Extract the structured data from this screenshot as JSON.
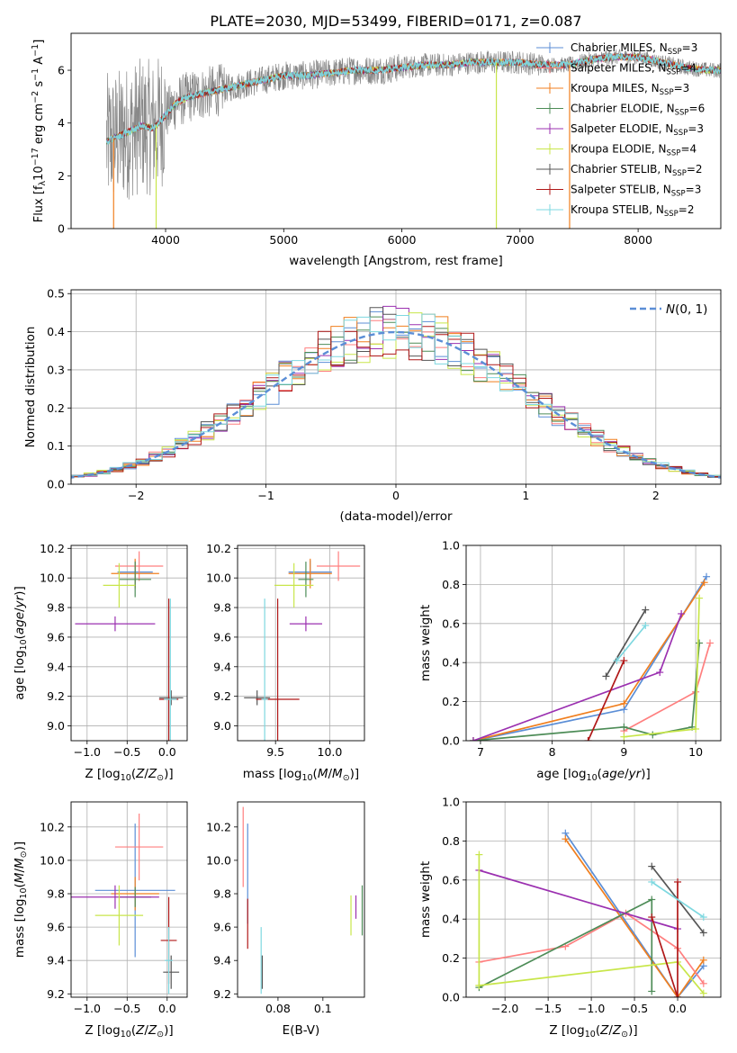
{
  "figure": {
    "title": "PLATE=2030, MJD=53499, FIBERID=0171, z=0.087"
  },
  "colors": {
    "chabrier_miles": "#5b8ed6",
    "salpeter_miles": "#ff7f7f",
    "kroupa_miles": "#f07f1f",
    "chabrier_elodie": "#4d8c57",
    "salpeter_elodie": "#9b30b0",
    "kroupa_elodie": "#c8e64a",
    "chabrier_stelib": "#555555",
    "salpeter_stelib": "#b01818",
    "kroupa_stelib": "#7ed8e0",
    "spectrum_data": "#888888",
    "gaussian": "#5b8ed6"
  },
  "chart_data": [
    {
      "id": "spectrum",
      "type": "line",
      "xlabel": "wavelength [Angstrom, rest frame]",
      "ylabel": "Flux [f_λ10^-17 erg cm^-2 s^-1 A^-1]",
      "xlim": [
        3200,
        8700
      ],
      "ylim": [
        0,
        7.4
      ],
      "xticks": [
        4000,
        5000,
        6000,
        7000,
        8000
      ],
      "yticks": [
        0,
        2,
        4,
        6
      ],
      "legend_position": "top-right",
      "legend": [
        {
          "key": "chabrier_miles",
          "label": "Chabrier MILES, N",
          "sub": "SSP",
          "rest": "=3"
        },
        {
          "key": "salpeter_miles",
          "label": "Salpeter MILES, N",
          "sub": "SSP",
          "rest": "=4"
        },
        {
          "key": "kroupa_miles",
          "label": "Kroupa MILES, N",
          "sub": "SSP",
          "rest": "=3"
        },
        {
          "key": "chabrier_elodie",
          "label": "Chabrier ELODIE, N",
          "sub": "SSP",
          "rest": "=6"
        },
        {
          "key": "salpeter_elodie",
          "label": "Salpeter ELODIE, N",
          "sub": "SSP",
          "rest": "=3"
        },
        {
          "key": "kroupa_elodie",
          "label": "Kroupa ELODIE, N",
          "sub": "SSP",
          "rest": "=4"
        },
        {
          "key": "chabrier_stelib",
          "label": "Chabrier STELIB, N",
          "sub": "SSP",
          "rest": "=2"
        },
        {
          "key": "salpeter_stelib",
          "label": "Salpeter STELIB, N",
          "sub": "SSP",
          "rest": "=3"
        },
        {
          "key": "kroupa_stelib",
          "label": "Kroupa STELIB, N",
          "sub": "SSP",
          "rest": "=2"
        }
      ],
      "continuum": {
        "x": [
          3500,
          3600,
          3700,
          3800,
          3900,
          4000,
          4100,
          4200,
          4400,
          4600,
          4800,
          5000,
          5200,
          5400,
          5600,
          5800,
          6000,
          6200,
          6400,
          6600,
          6800,
          7000,
          7200,
          7400,
          7600,
          7800,
          8000,
          8200,
          8400,
          8600,
          8700
        ],
        "y": [
          3.3,
          3.5,
          3.7,
          3.9,
          3.8,
          4.3,
          4.8,
          5.0,
          5.2,
          5.4,
          5.6,
          5.8,
          5.8,
          5.9,
          6.0,
          6.0,
          6.1,
          6.2,
          6.2,
          6.3,
          6.3,
          6.3,
          6.2,
          6.2,
          6.4,
          6.5,
          6.5,
          6.3,
          6.1,
          6.0,
          6.0
        ]
      },
      "spike_wavelengths": [
        6800,
        7420
      ]
    },
    {
      "id": "residuals",
      "type": "histogram",
      "xlabel": "(data-model)/error",
      "ylabel": "Normed distribution",
      "xlim": [
        -2.5,
        2.5
      ],
      "ylim": [
        0,
        0.51
      ],
      "xticks": [
        -2,
        -1,
        0,
        1,
        2
      ],
      "yticks": [
        0.0,
        0.1,
        0.2,
        0.3,
        0.4,
        0.5
      ],
      "grid": true,
      "legend_position": "top-right",
      "legend": [
        {
          "label": "N(0,1)"
        }
      ],
      "bin_width": 0.1,
      "gaussian_mean": 0,
      "gaussian_sigma": 1
    },
    {
      "id": "age_vs_Z",
      "type": "errorbar",
      "xlabel": "Z [log10(Z/Z⊙)]",
      "ylabel": "age [log10(age/yr)]",
      "xlim": [
        -1.2,
        0.25
      ],
      "ylim": [
        8.9,
        10.22
      ],
      "xticks": [
        -1.0,
        -0.5,
        0.0
      ],
      "yticks": [
        9.0,
        9.2,
        9.4,
        9.6,
        9.8,
        10.0,
        10.2
      ],
      "grid": true,
      "points": [
        {
          "key": "chabrier_miles",
          "x": -0.4,
          "xerr": 0.22,
          "y": 10.04,
          "yerr": 0.08
        },
        {
          "key": "salpeter_miles",
          "x": -0.35,
          "xerr": 0.3,
          "y": 10.08,
          "yerr": 0.1
        },
        {
          "key": "kroupa_miles",
          "x": -0.4,
          "xerr": 0.3,
          "y": 10.03,
          "yerr": 0.1
        },
        {
          "key": "chabrier_elodie",
          "x": -0.4,
          "xerr": 0.2,
          "y": 9.99,
          "yerr": 0.12
        },
        {
          "key": "salpeter_elodie",
          "x": -0.65,
          "xerr": 0.5,
          "y": 9.69,
          "yerr": 0.05
        },
        {
          "key": "kroupa_elodie",
          "x": -0.6,
          "xerr": 0.2,
          "y": 9.95,
          "yerr": 0.15
        },
        {
          "key": "chabrier_stelib",
          "x": 0.05,
          "xerr": 0.15,
          "y": 9.19,
          "yerr": 0.05
        },
        {
          "key": "salpeter_stelib",
          "x": 0.02,
          "xerr": 0.12,
          "y": 9.18,
          "yerr": 0.68
        },
        {
          "key": "kroupa_stelib",
          "x": 0.04,
          "xerr": 0.08,
          "y": 9.18,
          "yerr": 0.68
        }
      ]
    },
    {
      "id": "age_vs_mass",
      "type": "errorbar",
      "xlabel": "mass [log10(M/M⊙)]",
      "ylabel": "",
      "xlim": [
        9.15,
        10.32
      ],
      "ylim": [
        8.9,
        10.22
      ],
      "xticks": [
        9.5,
        10.0
      ],
      "yticks": [
        9.0,
        9.2,
        9.4,
        9.6,
        9.8,
        10.0,
        10.2
      ],
      "grid": true,
      "points": [
        {
          "key": "chabrier_miles",
          "x": 9.82,
          "xerr": 0.2,
          "y": 10.04,
          "yerr": 0.08
        },
        {
          "key": "salpeter_miles",
          "x": 10.08,
          "xerr": 0.2,
          "y": 10.08,
          "yerr": 0.1
        },
        {
          "key": "kroupa_miles",
          "x": 9.82,
          "xerr": 0.2,
          "y": 10.03,
          "yerr": 0.1
        },
        {
          "key": "chabrier_elodie",
          "x": 9.78,
          "xerr": 0.07,
          "y": 9.99,
          "yerr": 0.12
        },
        {
          "key": "salpeter_elodie",
          "x": 9.78,
          "xerr": 0.15,
          "y": 9.69,
          "yerr": 0.05
        },
        {
          "key": "kroupa_elodie",
          "x": 9.67,
          "xerr": 0.18,
          "y": 9.95,
          "yerr": 0.15
        },
        {
          "key": "chabrier_stelib",
          "x": 9.33,
          "xerr": 0.12,
          "y": 9.19,
          "yerr": 0.05
        },
        {
          "key": "salpeter_stelib",
          "x": 9.52,
          "xerr": 0.2,
          "y": 9.18,
          "yerr": 0.68
        },
        {
          "key": "kroupa_stelib",
          "x": 9.4,
          "xerr": 0.03,
          "y": 9.18,
          "yerr": 0.68
        }
      ]
    },
    {
      "id": "weight_vs_age",
      "type": "line",
      "xlabel": "age [log10(age/yr)]",
      "ylabel": "mass weight",
      "xlim": [
        6.8,
        10.35
      ],
      "ylim": [
        0,
        1.0
      ],
      "xticks": [
        7,
        8,
        9,
        10
      ],
      "yticks": [
        0.0,
        0.2,
        0.4,
        0.6,
        0.8,
        1.0
      ],
      "grid": true,
      "series": [
        {
          "key": "chabrier_miles",
          "x": [
            6.9,
            9.0,
            10.15
          ],
          "y": [
            0.0,
            0.16,
            0.84
          ]
        },
        {
          "key": "kroupa_miles",
          "x": [
            6.9,
            9.0,
            10.12
          ],
          "y": [
            0.0,
            0.19,
            0.81
          ]
        },
        {
          "key": "salpeter_miles",
          "x": [
            9.0,
            10.0,
            10.2
          ],
          "y": [
            0.05,
            0.25,
            0.5
          ]
        },
        {
          "key": "chabrier_elodie",
          "x": [
            6.9,
            9.0,
            9.4,
            9.95,
            10.05
          ],
          "y": [
            0.0,
            0.07,
            0.03,
            0.07,
            0.5
          ]
        },
        {
          "key": "salpeter_elodie",
          "x": [
            6.9,
            9.5,
            9.8
          ],
          "y": [
            0.0,
            0.35,
            0.65
          ]
        },
        {
          "key": "kroupa_elodie",
          "x": [
            9.0,
            10.0,
            10.05
          ],
          "y": [
            0.02,
            0.06,
            0.73
          ]
        },
        {
          "key": "chabrier_stelib",
          "x": [
            8.75,
            9.3
          ],
          "y": [
            0.33,
            0.67
          ]
        },
        {
          "key": "salpeter_stelib",
          "x": [
            8.5,
            9.0
          ],
          "y": [
            0.0,
            0.41
          ]
        },
        {
          "key": "kroupa_stelib",
          "x": [
            8.9,
            9.3
          ],
          "y": [
            0.41,
            0.59
          ]
        }
      ]
    },
    {
      "id": "mass_vs_Z",
      "type": "errorbar",
      "xlabel": "Z [log10(Z/Z⊙)]",
      "ylabel": "mass [log10(M/M⊙)]",
      "xlim": [
        -1.2,
        0.25
      ],
      "ylim": [
        9.18,
        10.35
      ],
      "xticks": [
        -1.0,
        -0.5,
        0.0
      ],
      "yticks": [
        9.2,
        9.4,
        9.6,
        9.8,
        10.0,
        10.2
      ],
      "grid": true,
      "points": [
        {
          "key": "chabrier_miles",
          "x": -0.4,
          "xerr": 0.5,
          "y": 9.82,
          "yerr": 0.4
        },
        {
          "key": "salpeter_miles",
          "x": -0.35,
          "xerr": 0.3,
          "y": 10.08,
          "yerr": 0.2
        },
        {
          "key": "kroupa_miles",
          "x": -0.4,
          "xerr": 0.3,
          "y": 9.8,
          "yerr": 0.1
        },
        {
          "key": "chabrier_elodie",
          "x": -0.4,
          "xerr": 0.2,
          "y": 9.78,
          "yerr": 0.06
        },
        {
          "key": "salpeter_elodie",
          "x": -0.65,
          "xerr": 0.55,
          "y": 9.78,
          "yerr": 0.07
        },
        {
          "key": "kroupa_elodie",
          "x": -0.6,
          "xerr": 0.3,
          "y": 9.67,
          "yerr": 0.18
        },
        {
          "key": "chabrier_stelib",
          "x": 0.05,
          "xerr": 0.1,
          "y": 9.33,
          "yerr": 0.1
        },
        {
          "key": "salpeter_stelib",
          "x": 0.02,
          "xerr": 0.1,
          "y": 9.52,
          "yerr": 0.26
        },
        {
          "key": "kroupa_stelib",
          "x": 0.02,
          "xerr": 0.05,
          "y": 9.4,
          "yerr": 0.2
        }
      ]
    },
    {
      "id": "mass_vs_ebv",
      "type": "errorbar",
      "xlabel": "E(B-V)",
      "ylabel": "",
      "xlim": [
        0.062,
        0.1185
      ],
      "ylim": [
        9.18,
        10.35
      ],
      "xticks": [
        0.08,
        0.1
      ],
      "yticks": [
        9.2,
        9.4,
        9.6,
        9.8,
        10.0,
        10.2
      ],
      "points": [
        {
          "key": "salpeter_miles",
          "x": 0.0645,
          "y": 10.08,
          "yerr": 0.24
        },
        {
          "key": "chabrier_miles",
          "x": 0.0665,
          "y": 9.92,
          "yerr": 0.3
        },
        {
          "key": "salpeter_stelib",
          "x": 0.0665,
          "y": 9.62,
          "yerr": 0.15
        },
        {
          "key": "kroupa_stelib",
          "x": 0.0725,
          "y": 9.4,
          "yerr": 0.2
        },
        {
          "key": "chabrier_stelib",
          "x": 0.073,
          "y": 9.33,
          "yerr": 0.1
        },
        {
          "key": "kroupa_elodie",
          "x": 0.1125,
          "y": 9.67,
          "yerr": 0.12
        },
        {
          "key": "salpeter_elodie",
          "x": 0.1147,
          "y": 9.72,
          "yerr": 0.07
        },
        {
          "key": "chabrier_elodie",
          "x": 0.1175,
          "y": 9.7,
          "yerr": 0.15
        }
      ]
    },
    {
      "id": "weight_vs_Z",
      "type": "line",
      "xlabel": "Z [log10(Z/Z⊙)]",
      "ylabel": "mass weight",
      "xlim": [
        -2.45,
        0.5
      ],
      "ylim": [
        0,
        1.0
      ],
      "xticks": [
        -2.0,
        -1.5,
        -1.0,
        -0.5,
        0.0
      ],
      "yticks": [
        0.0,
        0.2,
        0.4,
        0.6,
        0.8,
        1.0
      ],
      "grid": true,
      "series": [
        {
          "key": "chabrier_miles",
          "x": [
            -1.3,
            0.0,
            0.3
          ],
          "y": [
            0.84,
            0.0,
            0.16
          ]
        },
        {
          "key": "kroupa_miles",
          "x": [
            -1.3,
            0.0,
            0.3
          ],
          "y": [
            0.81,
            0.0,
            0.19
          ]
        },
        {
          "key": "salpeter_miles",
          "x": [
            -2.3,
            -1.3,
            -0.6,
            0.0,
            0.3
          ],
          "y": [
            0.18,
            0.26,
            0.43,
            0.25,
            0.07
          ]
        },
        {
          "key": "chabrier_elodie",
          "x": [
            -2.3,
            -0.3,
            -0.3
          ],
          "y": [
            0.05,
            0.5,
            0.03
          ]
        },
        {
          "key": "salpeter_elodie",
          "x": [
            -2.3,
            0.0
          ],
          "y": [
            0.65,
            0.35
          ]
        },
        {
          "key": "kroupa_elodie",
          "x": [
            -2.3,
            -2.3,
            -2.3,
            0.0,
            0.3
          ],
          "y": [
            0.06,
            0.73,
            0.06,
            0.18,
            0.02
          ]
        },
        {
          "key": "chabrier_stelib",
          "x": [
            -0.3,
            0.3
          ],
          "y": [
            0.67,
            0.33
          ]
        },
        {
          "key": "salpeter_stelib",
          "x": [
            -0.3,
            0.0,
            0.0
          ],
          "y": [
            0.41,
            0.0,
            0.59
          ]
        },
        {
          "key": "kroupa_stelib",
          "x": [
            -0.3,
            0.3
          ],
          "y": [
            0.59,
            0.41
          ]
        }
      ]
    }
  ]
}
